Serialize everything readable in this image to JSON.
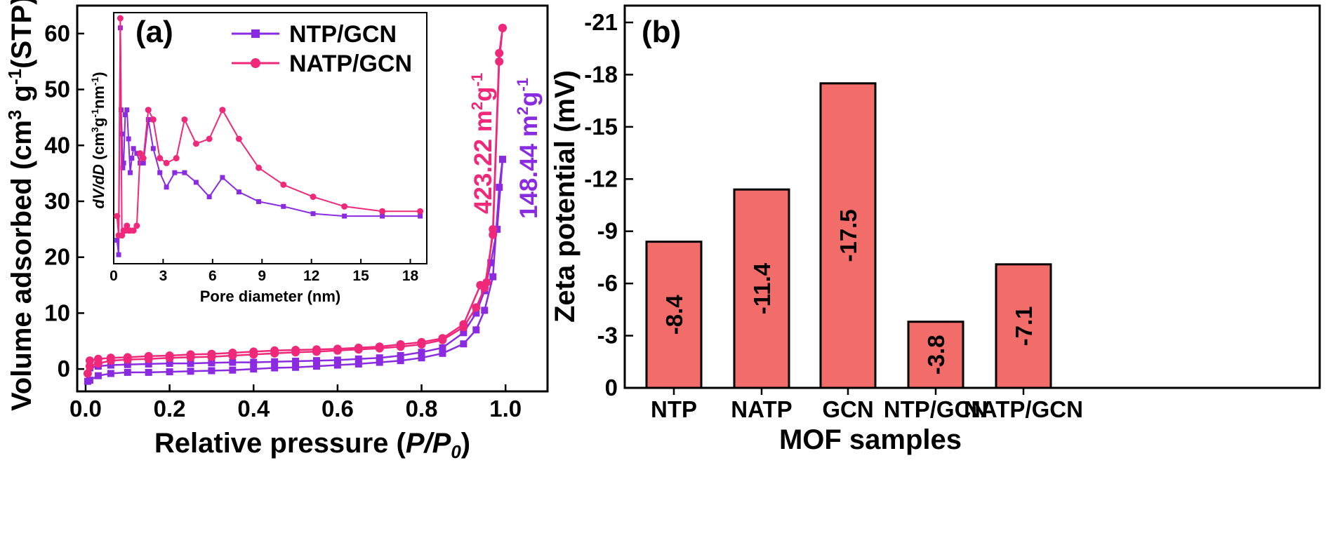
{
  "chart_data": [
    {
      "panel": "(a)",
      "type": "line",
      "xlabel": "Relative pressure (P/P0)",
      "xlabel_parts": {
        "prefix": "Relative pressure (",
        "p": "P",
        "slash": "/P",
        "sub": "0",
        "suffix": ")"
      },
      "ylabel": "Volume adsorbed (cm3 g-1(STP))",
      "ylabel_parts": {
        "a": "Volume adsorbed (cm",
        "b": "3",
        "c": " g",
        "d": "-1",
        "e": "(STP))"
      },
      "xlim": [
        -0.02,
        1.1
      ],
      "ylim": [
        -4,
        65
      ],
      "xticks": [
        "0.0",
        "0.2",
        "0.4",
        "0.6",
        "0.8",
        "1.0"
      ],
      "yticks": [
        "0",
        "10",
        "20",
        "30",
        "40",
        "50",
        "60"
      ],
      "legend": [
        {
          "name": "NTP/GCN",
          "marker": "square"
        },
        {
          "name": "NATP/GCN",
          "marker": "circle"
        }
      ],
      "annotations": [
        {
          "series": "NATP/GCN",
          "value": "423.22",
          "unit_a": " m",
          "unit_b": "2",
          "unit_c": "g",
          "unit_d": "-1"
        },
        {
          "series": "NTP/GCN",
          "value": "148.44",
          "unit_a": " m",
          "unit_b": "2",
          "unit_c": "g",
          "unit_d": "-1"
        }
      ],
      "series": [
        {
          "name": "NTP/GCN adsorption",
          "x": [
            0.005,
            0.01,
            0.03,
            0.06,
            0.1,
            0.15,
            0.2,
            0.25,
            0.3,
            0.35,
            0.4,
            0.45,
            0.5,
            0.55,
            0.6,
            0.65,
            0.7,
            0.75,
            0.8,
            0.85,
            0.9,
            0.93,
            0.95,
            0.97,
            0.985,
            0.993
          ],
          "y": [
            -2.2,
            -2.0,
            -1.2,
            -0.8,
            -0.6,
            -0.6,
            -0.5,
            -0.4,
            -0.3,
            -0.2,
            0.0,
            0.2,
            0.3,
            0.5,
            0.7,
            0.9,
            1.2,
            1.5,
            2.0,
            2.8,
            4.5,
            7.0,
            10.5,
            16.5,
            32.5,
            37.5
          ]
        },
        {
          "name": "NTP/GCN desorption",
          "x": [
            0.993,
            0.98,
            0.965,
            0.95,
            0.93,
            0.9,
            0.85,
            0.8,
            0.75,
            0.7,
            0.65,
            0.6,
            0.55,
            0.5,
            0.45,
            0.4,
            0.35,
            0.3,
            0.25,
            0.2,
            0.15,
            0.1,
            0.06,
            0.03,
            0.01
          ],
          "y": [
            37.5,
            25.0,
            19.0,
            14.0,
            10.0,
            6.5,
            3.8,
            3.0,
            2.4,
            2.0,
            1.8,
            1.6,
            1.5,
            1.4,
            1.3,
            1.2,
            1.2,
            1.1,
            1.0,
            1.0,
            0.9,
            0.8,
            0.7,
            0.5,
            0.2
          ]
        },
        {
          "name": "NATP/GCN adsorption",
          "x": [
            0.005,
            0.01,
            0.03,
            0.06,
            0.1,
            0.15,
            0.2,
            0.25,
            0.3,
            0.35,
            0.4,
            0.45,
            0.5,
            0.55,
            0.6,
            0.65,
            0.7,
            0.75,
            0.8,
            0.85,
            0.9,
            0.93,
            0.95,
            0.97,
            0.985,
            0.993
          ],
          "y": [
            -0.8,
            0.5,
            1.0,
            1.5,
            1.7,
            1.8,
            2.0,
            2.1,
            2.2,
            2.4,
            2.6,
            2.8,
            3.0,
            3.1,
            3.3,
            3.5,
            3.7,
            4.0,
            4.4,
            5.2,
            7.5,
            11.0,
            14.5,
            24.0,
            55.0,
            61.0
          ]
        },
        {
          "name": "NATP/GCN desorption",
          "x": [
            0.993,
            0.985,
            0.97,
            0.955,
            0.94,
            0.9,
            0.85,
            0.8,
            0.75,
            0.7,
            0.65,
            0.6,
            0.55,
            0.5,
            0.45,
            0.4,
            0.35,
            0.3,
            0.25,
            0.2,
            0.15,
            0.1,
            0.06,
            0.03,
            0.01
          ],
          "y": [
            61.0,
            56.5,
            25.0,
            15.5,
            15.0,
            8.0,
            5.5,
            4.8,
            4.4,
            4.0,
            3.8,
            3.6,
            3.5,
            3.4,
            3.3,
            3.1,
            2.9,
            2.7,
            2.6,
            2.4,
            2.3,
            2.1,
            2.0,
            1.8,
            1.5
          ]
        }
      ],
      "inset": {
        "type": "line",
        "xlabel": "Pore diameter (nm)",
        "ylabel": "dV/dD (cm3g-1nm-1)",
        "ylabel_parts": {
          "a": "dV/dD",
          "b": " (cm",
          "c": "3",
          "d": "g",
          "e": "-1",
          "f": "nm",
          "g": "-1",
          "h": ")"
        },
        "xlim": [
          0,
          19
        ],
        "ylim": [
          0,
          1
        ],
        "xticks": [
          "0",
          "3",
          "6",
          "9",
          "12",
          "15",
          "18"
        ],
        "series": [
          {
            "name": "NTP/GCN",
            "x": [
              0.2,
              0.3,
              0.4,
              0.45,
              0.5,
              0.55,
              0.6,
              0.7,
              0.8,
              0.9,
              1.0,
              1.1,
              1.2,
              1.4,
              1.6,
              1.8,
              2.1,
              2.4,
              2.8,
              3.2,
              3.7,
              4.3,
              5.0,
              5.8,
              6.6,
              7.6,
              8.8,
              10.3,
              12.1,
              14.0,
              16.3,
              18.6
            ],
            "y": [
              0.08,
              0.02,
              0.96,
              0.62,
              0.52,
              0.38,
              0.4,
              0.6,
              0.62,
              0.5,
              0.36,
              0.42,
              0.46,
              0.44,
              0.4,
              0.4,
              0.58,
              0.46,
              0.36,
              0.3,
              0.36,
              0.36,
              0.32,
              0.26,
              0.34,
              0.28,
              0.24,
              0.22,
              0.19,
              0.18,
              0.18,
              0.18
            ]
          },
          {
            "name": "NATP/GCN",
            "x": [
              0.2,
              0.3,
              0.4,
              0.5,
              0.6,
              0.7,
              0.8,
              0.9,
              1.0,
              1.2,
              1.4,
              1.6,
              1.8,
              2.1,
              2.4,
              2.8,
              3.2,
              3.8,
              4.3,
              5.0,
              5.8,
              6.6,
              7.6,
              8.8,
              10.3,
              12.1,
              14.0,
              16.3,
              18.6
            ],
            "y": [
              0.18,
              0.1,
              1.0,
              0.1,
              0.12,
              0.12,
              0.14,
              0.12,
              0.12,
              0.12,
              0.14,
              0.44,
              0.42,
              0.62,
              0.58,
              0.42,
              0.4,
              0.42,
              0.58,
              0.48,
              0.5,
              0.62,
              0.5,
              0.38,
              0.31,
              0.26,
              0.22,
              0.2,
              0.2
            ]
          }
        ]
      }
    },
    {
      "panel": "(b)",
      "type": "bar",
      "xlabel": "MOF samples",
      "ylabel": "Zeta potential (mV)",
      "categories": [
        "NTP",
        "NATP",
        "GCN",
        "NTP/GCN",
        "NATP/GCN"
      ],
      "values": [
        -8.4,
        -11.4,
        -17.5,
        -3.8,
        -7.1
      ],
      "bar_labels": [
        "-8.4",
        "-11.4",
        "-17.5",
        "-3.8",
        "-7.1"
      ],
      "ylim": [
        0,
        -21
      ],
      "yticks": [
        "0",
        "-3",
        "-6",
        "-9",
        "-12",
        "-15",
        "-18",
        "-21"
      ],
      "bar_color": "#f26d6a"
    }
  ],
  "colors": {
    "ntp_gcn": "#8a2be2",
    "natp_gcn": "#f0287a",
    "bar": "#f26d6a"
  }
}
